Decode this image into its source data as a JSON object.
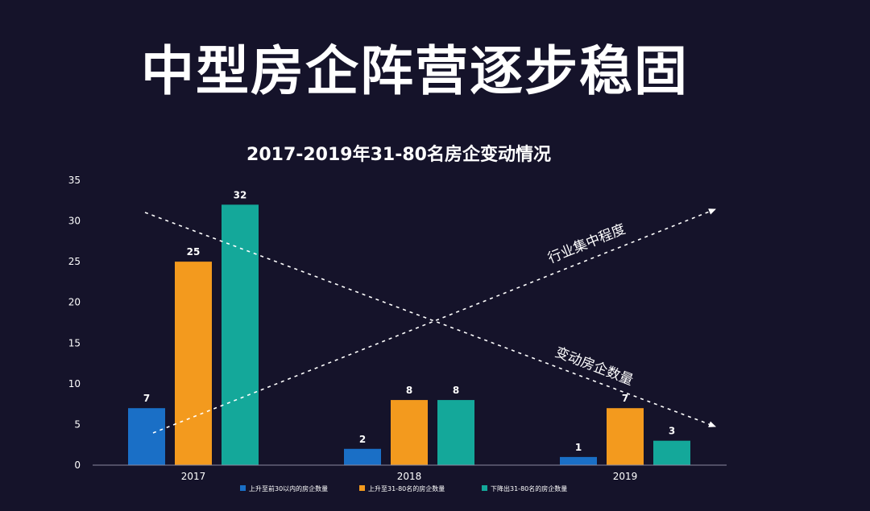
{
  "headline": "中型房企阵营逐步稳固",
  "colors": {
    "background": "#15132a",
    "series_blue": "#1a6fc6",
    "series_orange": "#f39a1e",
    "series_teal": "#14a89a"
  },
  "chart_data": {
    "type": "bar",
    "title": "2017-2019年31-80名房企变动情况",
    "categories": [
      "2017",
      "2018",
      "2019"
    ],
    "series": [
      {
        "name": "上升至前30以内的房企数量",
        "values": [
          7,
          2,
          1
        ],
        "color": "#1a6fc6"
      },
      {
        "name": "上升至31-80名的房企数量",
        "values": [
          25,
          8,
          7
        ],
        "color": "#f39a1e"
      },
      {
        "name": "下降出31-80名的房企数量",
        "values": [
          32,
          8,
          3
        ],
        "color": "#14a89a"
      }
    ],
    "ylim": [
      0,
      35
    ],
    "yticks": [
      0,
      5,
      10,
      15,
      20,
      25,
      30,
      35
    ],
    "grid": false,
    "legend": "bottom",
    "annotations": [
      {
        "text": "行业集中程度",
        "trend": "rising"
      },
      {
        "text": "变动房企数量",
        "trend": "falling"
      }
    ]
  }
}
